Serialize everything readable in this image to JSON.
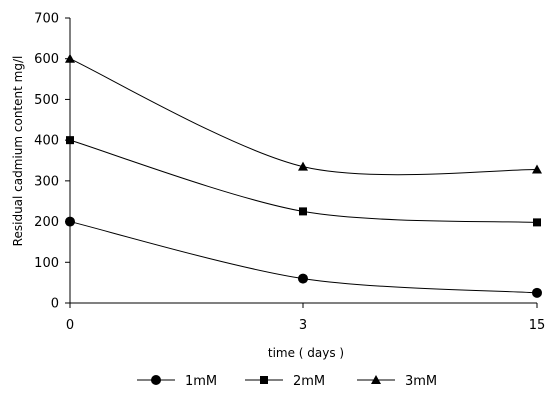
{
  "chart_data": {
    "type": "line",
    "xlabel": "time ( days )",
    "ylabel": "Residual cadmium content mg/l",
    "categories": [
      "0",
      "3",
      "15"
    ],
    "ylim": [
      0,
      700
    ],
    "yticks": [
      0,
      100,
      200,
      300,
      400,
      500,
      600,
      700
    ],
    "grid": false,
    "smooth": true,
    "legend_position": "bottom",
    "series": [
      {
        "name": "1mM",
        "marker": "circle",
        "values": [
          200,
          60,
          25
        ]
      },
      {
        "name": "2mM",
        "marker": "square",
        "values": [
          400,
          225,
          198
        ]
      },
      {
        "name": "3mM",
        "marker": "triangle",
        "values": [
          600,
          335,
          328
        ]
      }
    ],
    "colors": {
      "line": "#000000",
      "background": "#ffffff"
    }
  }
}
